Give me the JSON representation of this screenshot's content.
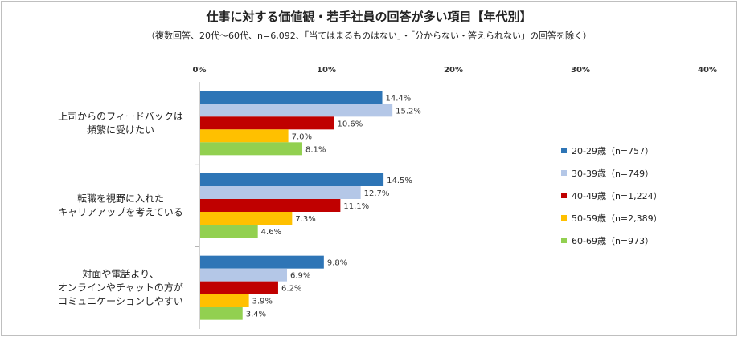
{
  "chart_data": {
    "type": "bar",
    "orientation": "horizontal",
    "title": "仕事に対する価値観・若手社員の回答が多い項目【年代別】",
    "subtitle": "（複数回答、20代～60代、n=6,092、「当てはまるものはない」・「分からない・答えられない」の回答を除く）",
    "xlim": [
      0,
      40
    ],
    "x_ticks": [
      "0%",
      "10%",
      "20%",
      "30%",
      "40%"
    ],
    "grid": false,
    "legend_position": "right",
    "categories": [
      [
        "上司からのフィードバックは",
        "頻繁に受けたい"
      ],
      [
        "転職を視野に入れた",
        "キャリアアップを考えている"
      ],
      [
        "対面や電話より、",
        "オンラインやチャットの方が",
        "コミュニケーションしやすい"
      ]
    ],
    "series": [
      {
        "name": "20-29歳（n=757）",
        "color": "#2e75b6",
        "values": [
          14.4,
          14.5,
          9.8
        ],
        "labels": [
          "14.4%",
          "14.5%",
          "9.8%"
        ]
      },
      {
        "name": "30-39歳（n=749）",
        "color": "#b4c7e7",
        "values": [
          15.2,
          12.7,
          6.9
        ],
        "labels": [
          "15.2%",
          "12.7%",
          "6.9%"
        ]
      },
      {
        "name": "40-49歳（n=1,224）",
        "color": "#c00000",
        "values": [
          10.6,
          11.1,
          6.2
        ],
        "labels": [
          "10.6%",
          "11.1%",
          "6.2%"
        ]
      },
      {
        "name": "50-59歳（n=2,389）",
        "color": "#ffc000",
        "values": [
          7.0,
          7.3,
          3.9
        ],
        "labels": [
          "7.0%",
          "7.3%",
          "3.9%"
        ]
      },
      {
        "name": "60-69歳（n=973）",
        "color": "#92d050",
        "values": [
          8.1,
          4.6,
          3.4
        ],
        "labels": [
          "8.1%",
          "4.6%",
          "3.4%"
        ]
      }
    ]
  }
}
